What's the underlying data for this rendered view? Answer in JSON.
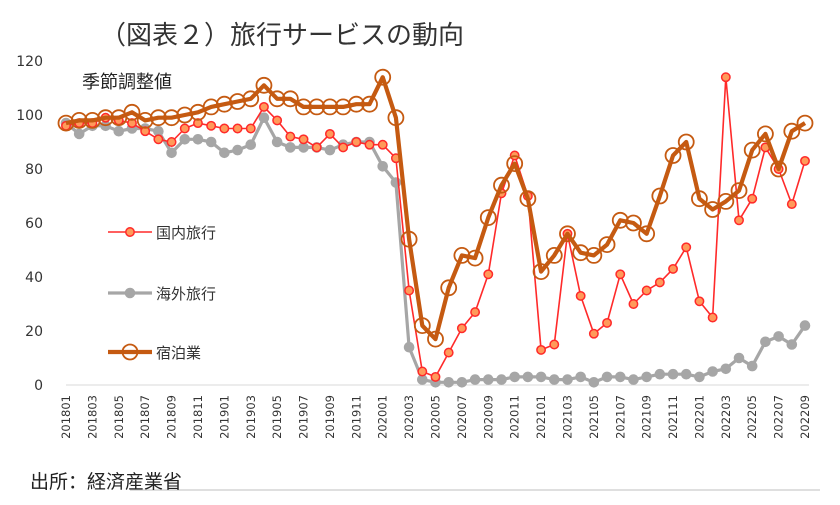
{
  "chart_data": {
    "type": "line",
    "title": "（図表２）旅行サービスの動向",
    "subtitle": "季節調整値",
    "source": "出所：経済産業省",
    "ylim": [
      0,
      120
    ],
    "yticks": [
      0,
      20,
      40,
      60,
      80,
      100,
      120
    ],
    "grid": false,
    "legend_position": "center-left",
    "x": [
      "201801",
      "201802",
      "201803",
      "201804",
      "201805",
      "201806",
      "201807",
      "201808",
      "201809",
      "201810",
      "201811",
      "201812",
      "201901",
      "201902",
      "201903",
      "201904",
      "201905",
      "201906",
      "201907",
      "201908",
      "201909",
      "201910",
      "201911",
      "201912",
      "202001",
      "202002",
      "202003",
      "202004",
      "202005",
      "202006",
      "202007",
      "202008",
      "202009",
      "202010",
      "202011",
      "202012",
      "202101",
      "202102",
      "202103",
      "202104",
      "202105",
      "202106",
      "202107",
      "202108",
      "202109",
      "202110",
      "202111",
      "202112",
      "202201",
      "202202",
      "202203",
      "202204",
      "202205",
      "202206",
      "202207",
      "202208",
      "202209"
    ],
    "x_tick_labels": [
      "201801",
      "201803",
      "201805",
      "201807",
      "201809",
      "201811",
      "201901",
      "201903",
      "201905",
      "201907",
      "201909",
      "201911",
      "202001",
      "202003",
      "202005",
      "202007",
      "202009",
      "202011",
      "202101",
      "202103",
      "202105",
      "202107",
      "202109",
      "202111",
      "202201",
      "202203",
      "202205",
      "202207",
      "202209"
    ],
    "series": [
      {
        "name": "国内旅行",
        "color": "#ff2a2a",
        "marker": "filled-circle",
        "values": [
          96,
          97,
          97,
          99,
          98,
          97,
          94,
          91,
          90,
          95,
          97,
          96,
          95,
          95,
          95,
          103,
          98,
          92,
          91,
          88,
          93,
          88,
          90,
          89,
          89,
          84,
          35,
          5,
          3,
          12,
          21,
          27,
          41,
          71,
          85,
          70,
          13,
          15,
          56,
          33,
          19,
          23,
          41,
          30,
          35,
          38,
          43,
          51,
          31,
          25,
          114,
          61,
          69,
          88,
          80,
          67,
          83
        ]
      },
      {
        "name": "海外旅行",
        "color": "#a6a6a6",
        "marker": "filled-circle",
        "values": [
          97,
          93,
          96,
          96,
          94,
          95,
          95,
          94,
          86,
          91,
          91,
          90,
          86,
          87,
          89,
          99,
          90,
          88,
          88,
          88,
          87,
          89,
          90,
          90,
          81,
          75,
          14,
          2,
          1,
          1,
          1,
          2,
          2,
          2,
          3,
          3,
          3,
          2,
          2,
          3,
          1,
          3,
          3,
          2,
          3,
          4,
          4,
          4,
          3,
          5,
          6,
          10,
          7,
          16,
          18,
          15,
          22
        ]
      },
      {
        "name": "宿泊業",
        "color": "#c55a11",
        "marker": "hollow-circle",
        "values": [
          97,
          98,
          98,
          99,
          99,
          101,
          98,
          99,
          99,
          100,
          101,
          103,
          104,
          105,
          106,
          111,
          106,
          106,
          103,
          103,
          103,
          103,
          104,
          104,
          114,
          99,
          54,
          22,
          17,
          36,
          48,
          47,
          62,
          74,
          82,
          69,
          42,
          48,
          56,
          49,
          48,
          52,
          61,
          60,
          56,
          70,
          85,
          90,
          69,
          65,
          68,
          72,
          87,
          93,
          80,
          94,
          97
        ]
      }
    ]
  }
}
